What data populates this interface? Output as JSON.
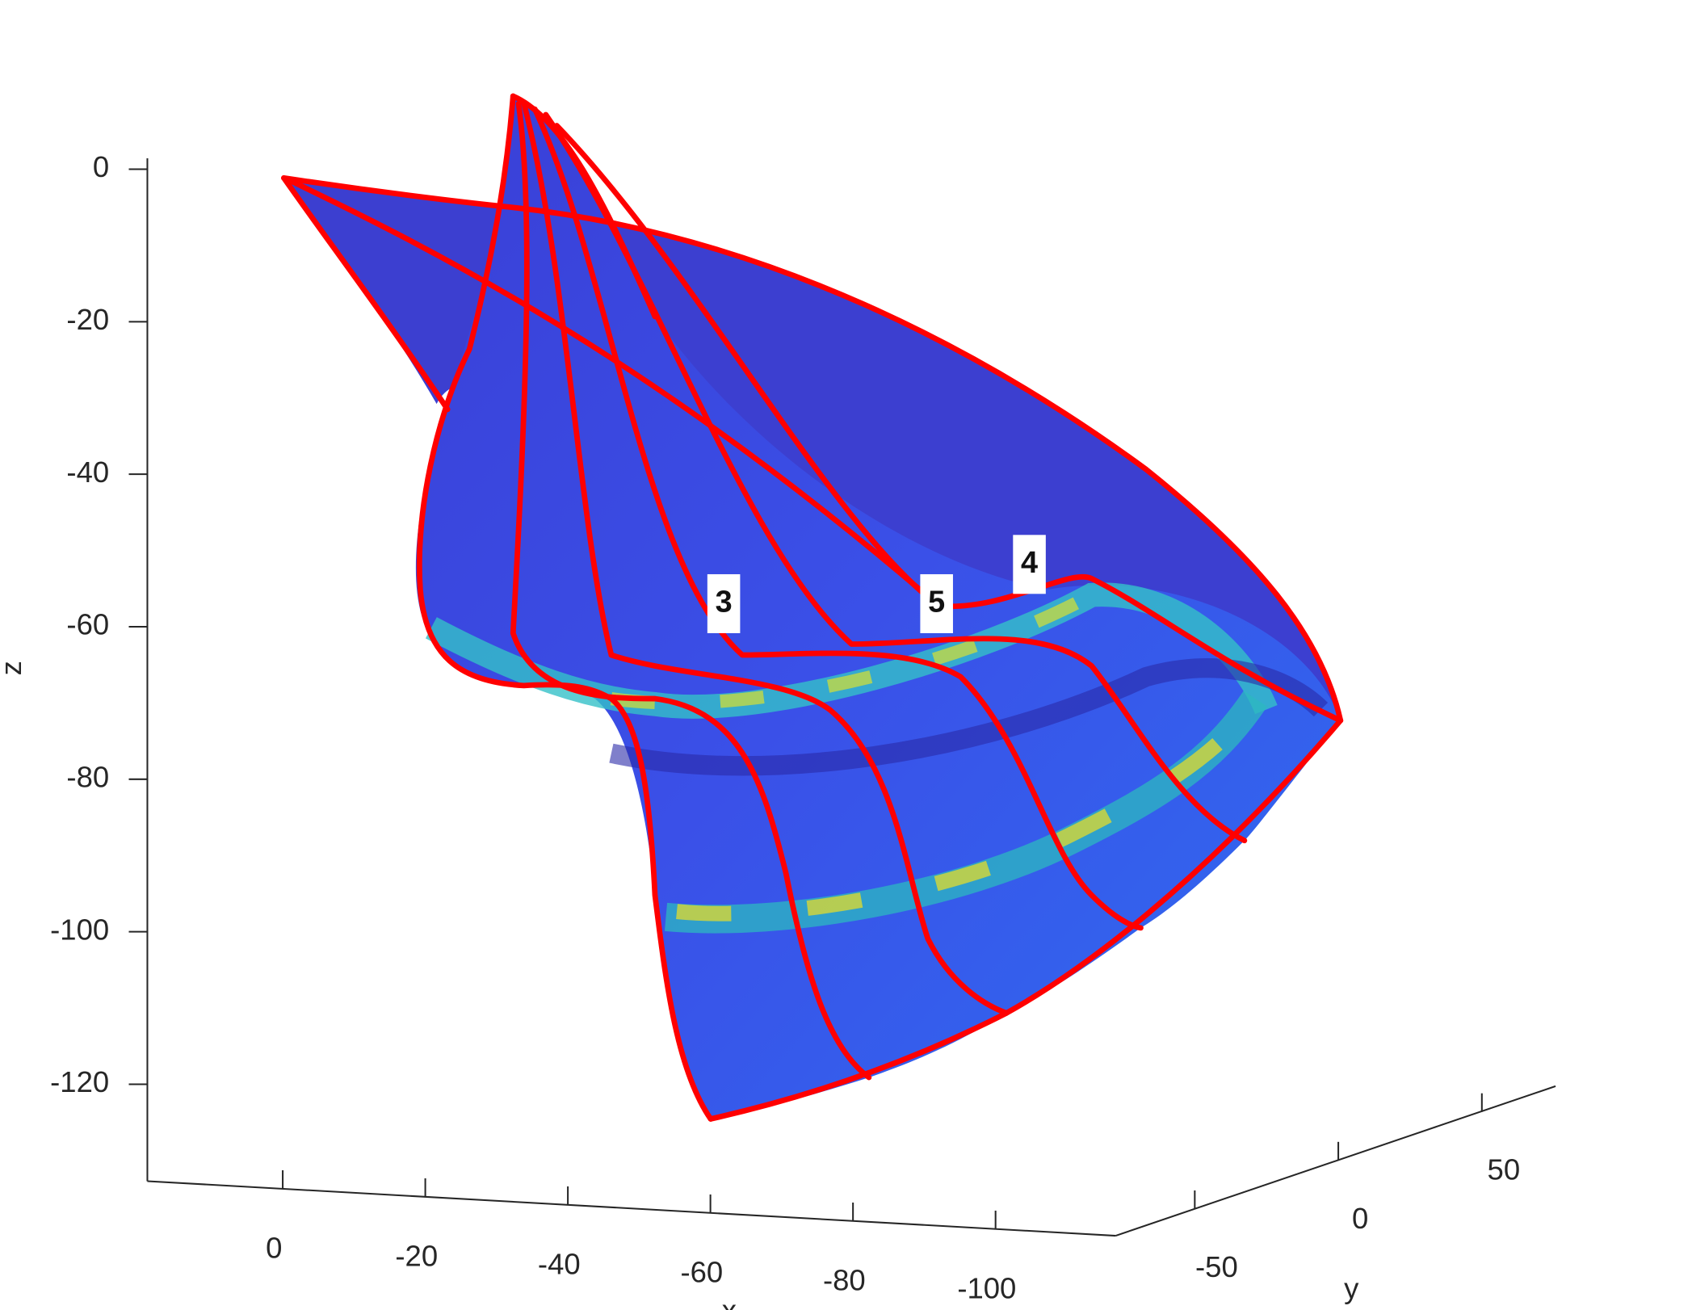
{
  "chart_data": {
    "type": "surface3d",
    "xlabel": "x",
    "ylabel": "y",
    "zlabel": "z",
    "xlim": [
      -117,
      19
    ],
    "xticks": [
      0,
      -20,
      -40,
      -60,
      -80,
      -100
    ],
    "ylim": [
      -78,
      76
    ],
    "yticks": [
      -50,
      0,
      50
    ],
    "zlim": [
      -132,
      1
    ],
    "zticks": [
      0,
      -20,
      -40,
      -60,
      -80,
      -100,
      -120
    ],
    "annotations": [
      "3",
      "5",
      "4"
    ]
  }
}
